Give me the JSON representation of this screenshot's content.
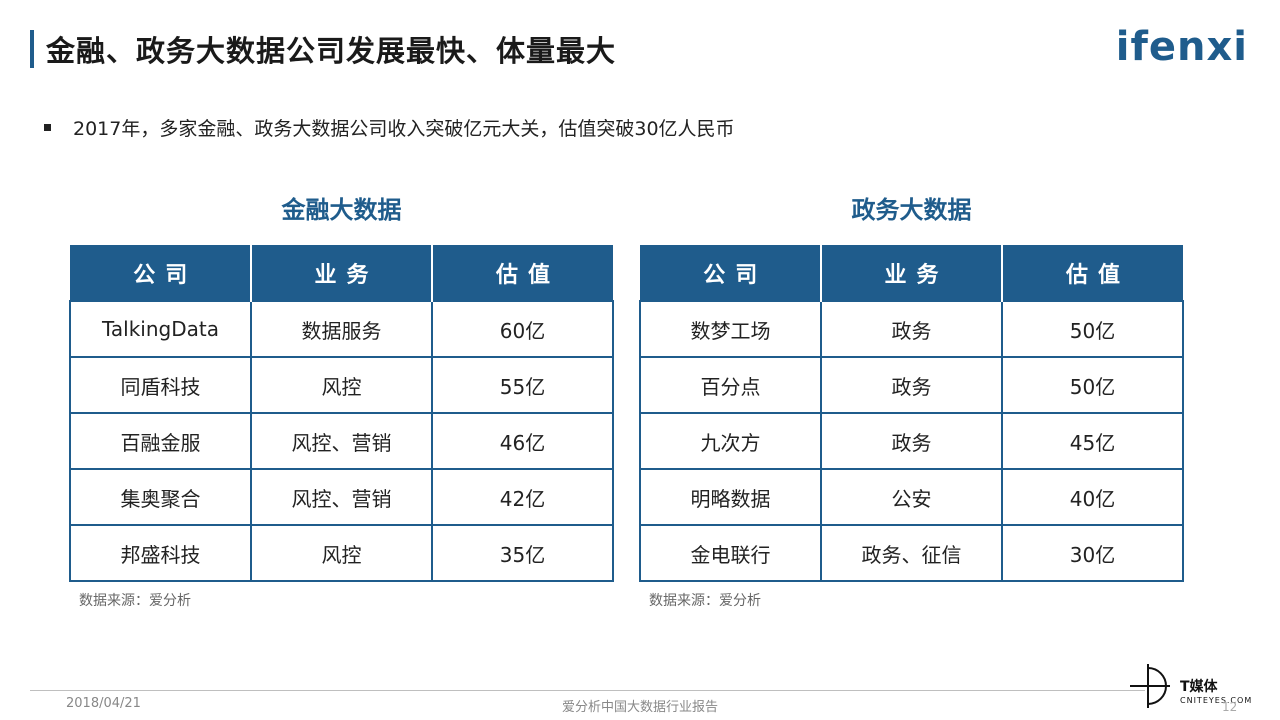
{
  "header": {
    "title": "金融、政务大数据公司发展最快、体量最大",
    "logo": "ifenxi"
  },
  "summary": {
    "bullet": "2017年，多家金融、政务大数据公司收入突破亿元大关，估值突破30亿人民币"
  },
  "finance": {
    "title": "金融大数据",
    "columns": [
      "公司",
      "业务",
      "估值"
    ],
    "rows": [
      [
        "TalkingData",
        "数据服务",
        "60亿"
      ],
      [
        "同盾科技",
        "风控",
        "55亿"
      ],
      [
        "百融金服",
        "风控、营销",
        "46亿"
      ],
      [
        "集奥聚合",
        "风控、营销",
        "42亿"
      ],
      [
        "邦盛科技",
        "风控",
        "35亿"
      ]
    ],
    "source": "数据来源：爱分析"
  },
  "government": {
    "title": "政务大数据",
    "columns": [
      "公司",
      "业务",
      "估值"
    ],
    "rows": [
      [
        "数梦工场",
        "政务",
        "50亿"
      ],
      [
        "百分点",
        "政务",
        "50亿"
      ],
      [
        "九次方",
        "政务",
        "45亿"
      ],
      [
        "明略数据",
        "公安",
        "40亿"
      ],
      [
        "金电联行",
        "政务、征信",
        "30亿"
      ]
    ],
    "source": "数据来源：爱分析"
  },
  "footer": {
    "date": "2018/04/21",
    "report": "爱分析中国大数据行业报告",
    "page": "12",
    "brand": "T媒体",
    "brand_sub": "CNITEYES.COM"
  },
  "colors": {
    "accent": "#1f5c8c"
  }
}
